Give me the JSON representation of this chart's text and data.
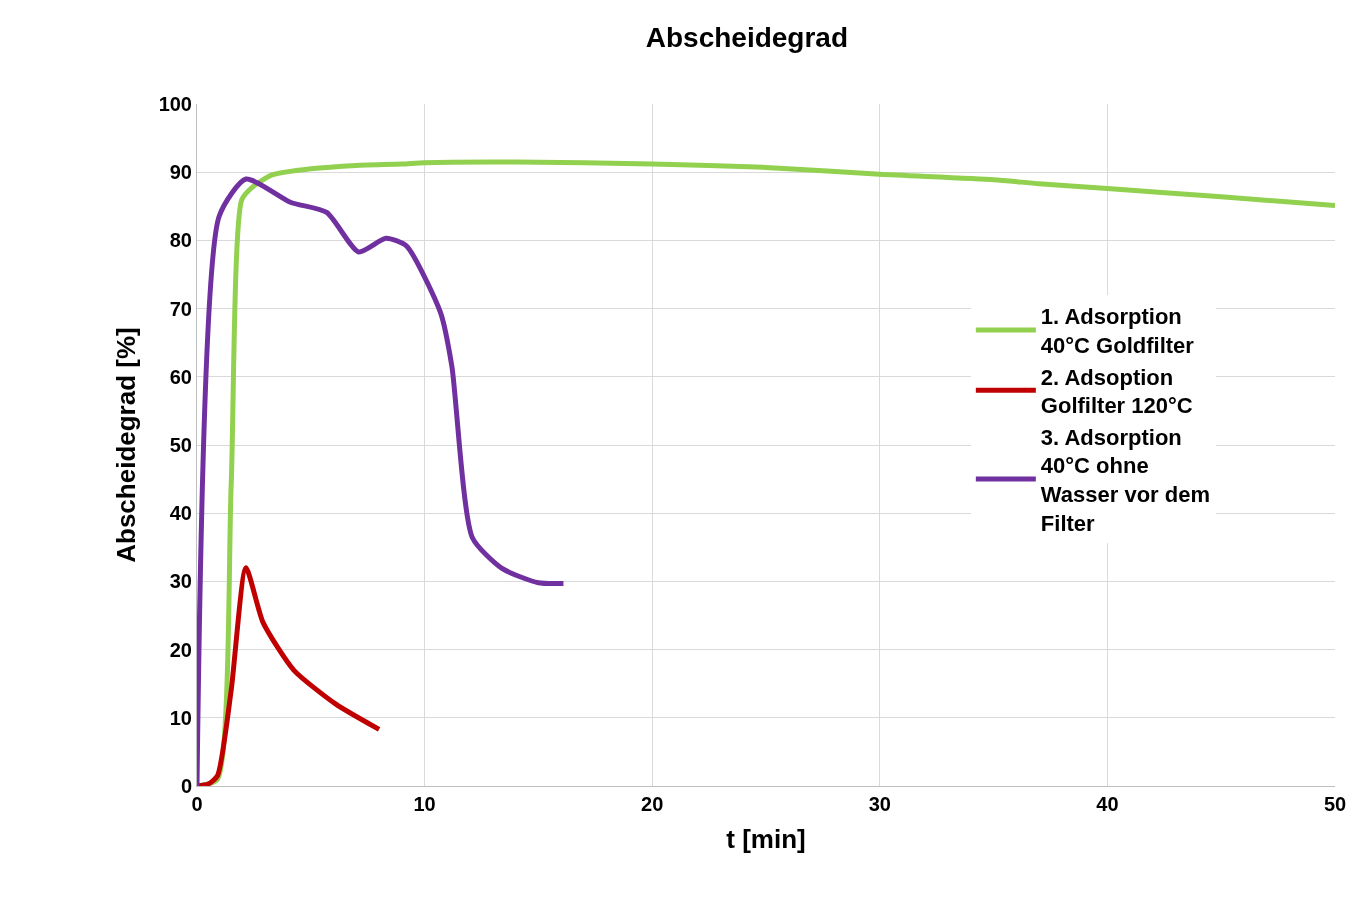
{
  "chart_data": {
    "type": "line",
    "title": "Abscheidegrad",
    "xlabel": "t [min]",
    "ylabel": "Abscheidegrad [%]",
    "xlim": [
      0,
      50
    ],
    "xticks": [
      0,
      10,
      20,
      30,
      40,
      50
    ],
    "ylim": [
      0,
      100
    ],
    "yticks": [
      0,
      10,
      20,
      30,
      40,
      50,
      60,
      70,
      80,
      90,
      100
    ],
    "grid": true,
    "legend": "right",
    "marker": "none",
    "line_style": "solid",
    "series": [
      {
        "name": "1. Adsorption\n40°C Goldfilter",
        "color": "#92d050",
        "x": [
          0,
          0.9,
          1.5,
          1.97,
          2.5,
          3.3,
          5,
          7,
          9,
          10,
          14,
          20,
          25,
          30,
          35,
          37,
          40,
          45,
          50
        ],
        "values": [
          0,
          1,
          44,
          86,
          88,
          89.6,
          90.5,
          91,
          91.2,
          91.4,
          91.5,
          91.2,
          90.7,
          89.7,
          88.9,
          88.3,
          87.6,
          86.4,
          85.1
        ]
      },
      {
        "name": "2. Adsoption\nGolfilter 120°C",
        "color": "#c00000",
        "x": [
          0,
          0.5,
          0.9,
          1.5,
          2.15,
          2.9,
          4.25,
          6.1,
          8.0
        ],
        "values": [
          0,
          0.3,
          1.5,
          14,
          32,
          24,
          17,
          12,
          8.3
        ]
      },
      {
        "name": "3. Adsorption\n40°C ohne\nWasser vor dem\nFilter",
        "color": "#7030a0",
        "x": [
          0,
          0.97,
          2.15,
          4.1,
          5.7,
          7.1,
          8.3,
          9.2,
          10.7,
          11.2,
          12.1,
          13.4,
          15,
          16.1
        ],
        "values": [
          0,
          83.5,
          89,
          85.6,
          84.1,
          78.3,
          80.3,
          79.2,
          69.4,
          61.5,
          36.4,
          31.9,
          29.8,
          29.7
        ]
      }
    ]
  }
}
